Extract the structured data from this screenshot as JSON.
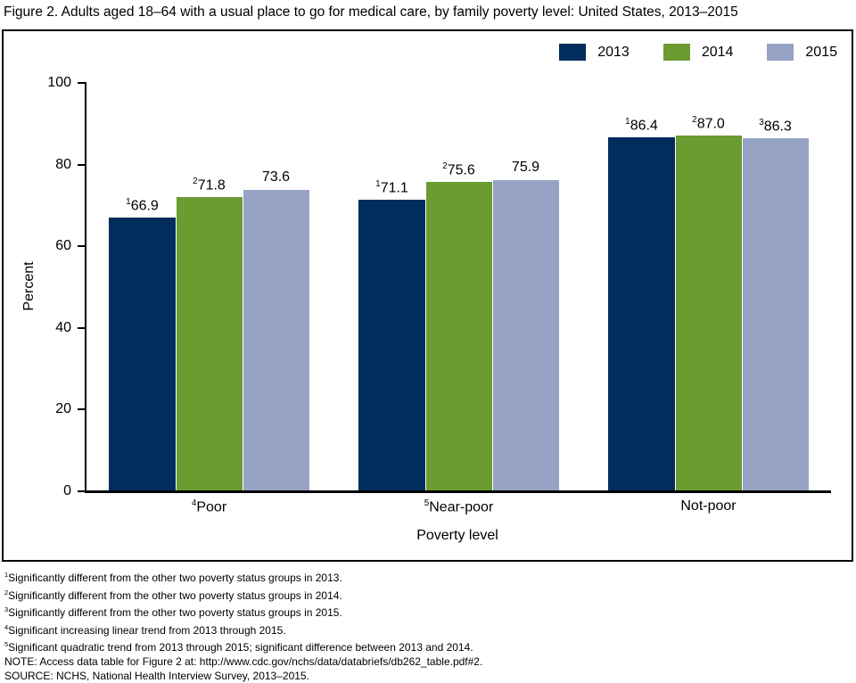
{
  "title": "Figure 2. Adults aged 18–64 with a usual place to go for medical care, by family poverty level: United States, 2013–2015",
  "chart_data": {
    "type": "bar",
    "title": "Adults aged 18–64 with a usual place to go for medical care, by family poverty level: United States, 2013–2015",
    "xlabel": "Poverty level",
    "ylabel": "Percent",
    "ylim": [
      0,
      100
    ],
    "yticks": [
      0,
      20,
      40,
      60,
      80,
      100
    ],
    "grid": false,
    "legend_position": "top-right",
    "categories": [
      {
        "sup": "4",
        "label": "Poor"
      },
      {
        "sup": "5",
        "label": "Near-poor"
      },
      {
        "sup": "",
        "label": "Not-poor"
      }
    ],
    "series": [
      {
        "name": "2013",
        "color": "#002d5c",
        "points": [
          {
            "value": 66.9,
            "label": "66.9",
            "sup": "1"
          },
          {
            "value": 71.1,
            "label": "71.1",
            "sup": "1"
          },
          {
            "value": 86.4,
            "label": "86.4",
            "sup": "1"
          }
        ]
      },
      {
        "name": "2014",
        "color": "#6a9c31",
        "points": [
          {
            "value": 71.8,
            "label": "71.8",
            "sup": "2"
          },
          {
            "value": 75.6,
            "label": "75.6",
            "sup": "2"
          },
          {
            "value": 87.0,
            "label": "87.0",
            "sup": "2"
          }
        ]
      },
      {
        "name": "2015",
        "color": "#96a3c4",
        "points": [
          {
            "value": 73.6,
            "label": "73.6",
            "sup": ""
          },
          {
            "value": 75.9,
            "label": "75.9",
            "sup": ""
          },
          {
            "value": 86.3,
            "label": "86.3",
            "sup": "3"
          }
        ]
      }
    ]
  },
  "footnotes": [
    {
      "sup": "1",
      "text": "Significantly different from the other two poverty status groups in 2013."
    },
    {
      "sup": "2",
      "text": "Significantly different from the other two poverty status groups in 2014."
    },
    {
      "sup": "3",
      "text": "Significantly different from the other two poverty status groups in 2015."
    },
    {
      "sup": "4",
      "text": "Significant increasing linear trend from 2013 through 2015."
    },
    {
      "sup": "5",
      "text": "Significant quadratic trend from 2013 through 2015; significant difference between 2013 and 2014."
    },
    {
      "sup": "",
      "text": "NOTE: Access data table for Figure 2 at: http://www.cdc.gov/nchs/data/databriefs/db262_table.pdf#2."
    },
    {
      "sup": "",
      "text": "SOURCE: NCHS, National Health Interview Survey, 2013–2015."
    }
  ]
}
